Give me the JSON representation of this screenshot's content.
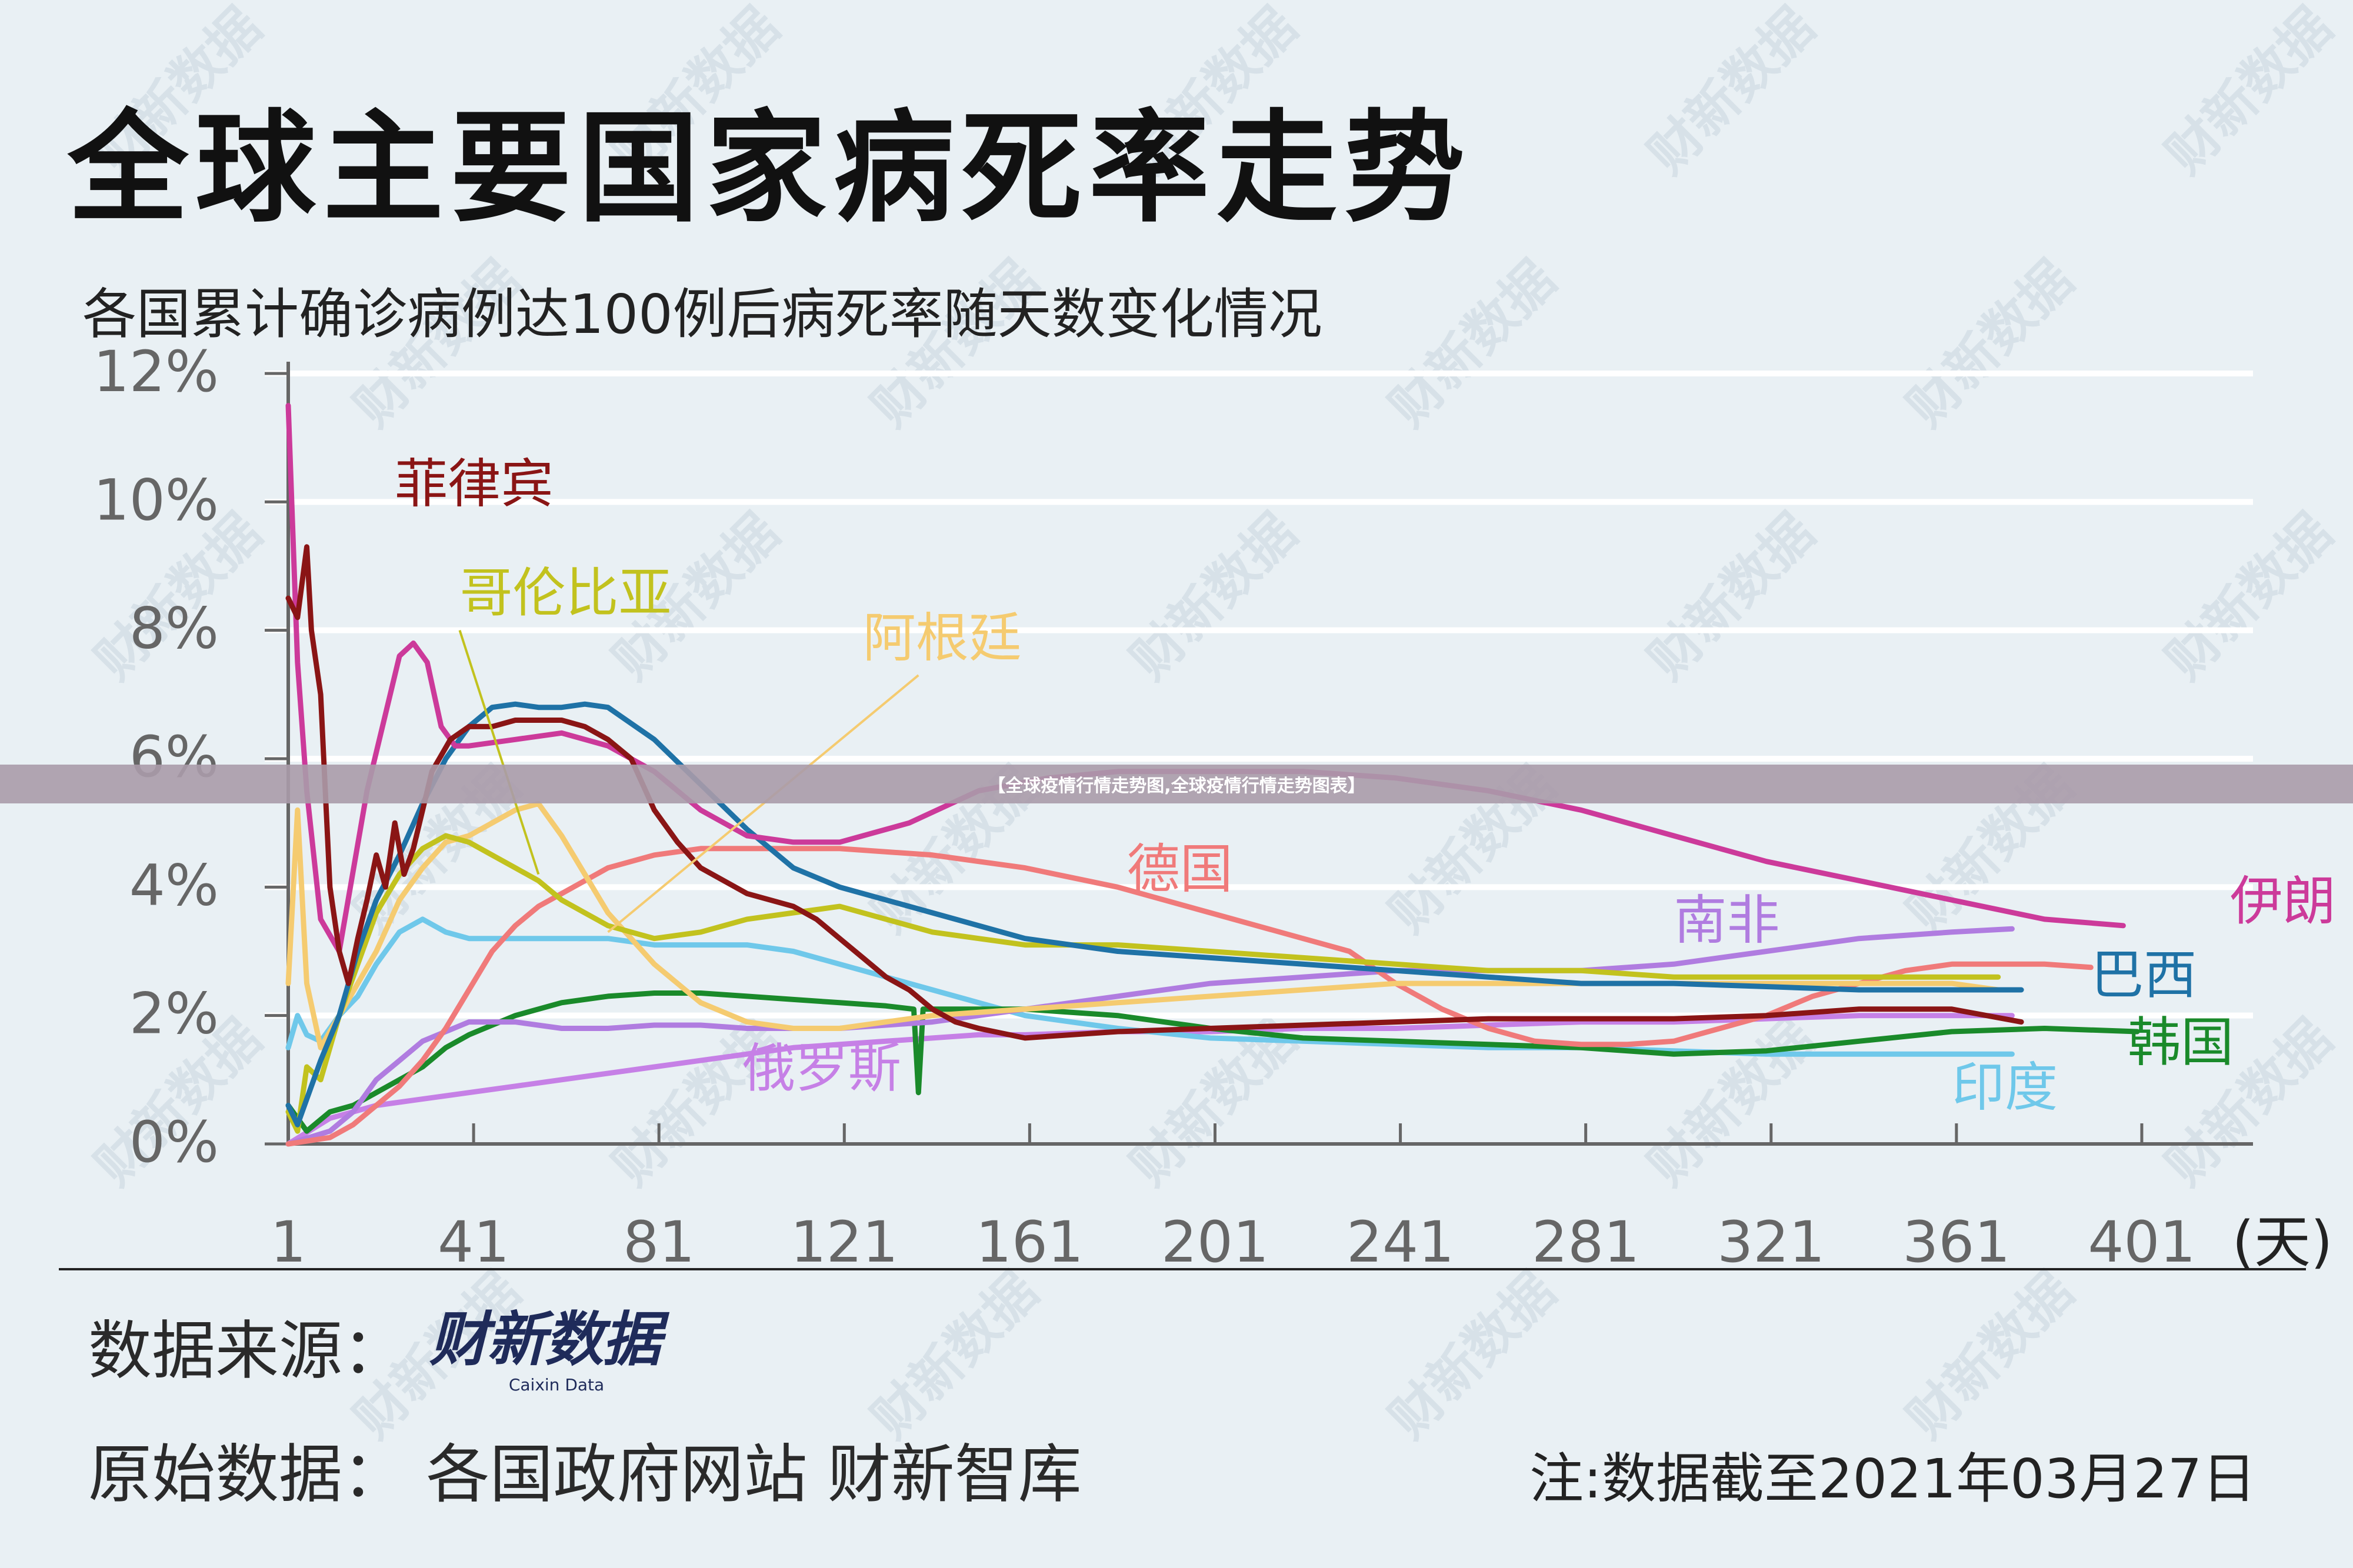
{
  "page": {
    "title": "全球主要国家病死率走势",
    "subtitle": "各国累计确诊病例达100例后病死率随天数变化情况",
    "banner": "【全球疫情行情走势图,全球疫情行情走势图表】",
    "source_label": "数据来源：",
    "logo_cn": "财新数据",
    "logo_en": "Caixin Data",
    "original_data": "原始数据：  各国政府网站  财新智库",
    "note": "注:数据截至2021年03月27日",
    "watermark": "财新数据"
  },
  "chart_data": {
    "type": "line",
    "title": "全球主要国家病死率走势",
    "subtitle": "各国累计确诊病例达100例后病死率随天数变化情况",
    "xlabel": "(天)",
    "xlim": [
      1,
      425
    ],
    "ylim": [
      0,
      12
    ],
    "xticks": [
      1,
      41,
      81,
      121,
      161,
      201,
      241,
      281,
      321,
      361,
      401
    ],
    "yticks": [
      0,
      2,
      4,
      6,
      8,
      10,
      12
    ],
    "ytick_labels": [
      "0%",
      "2%",
      "4%",
      "6%",
      "8%",
      "10%",
      "12%"
    ],
    "grid": true,
    "series": [
      {
        "name": "伊朗",
        "color": "#cc3a9a",
        "label_pos": [
          420,
          3.5
        ],
        "x": [
          1,
          3,
          5,
          8,
          12,
          18,
          25,
          28,
          31,
          34,
          37,
          40,
          50,
          60,
          70,
          80,
          90,
          100,
          110,
          120,
          135,
          150,
          165,
          180,
          200,
          220,
          240,
          260,
          280,
          300,
          320,
          340,
          360,
          380,
          397
        ],
        "y": [
          11.5,
          7.5,
          5.5,
          3.5,
          3.0,
          5.5,
          7.6,
          7.8,
          7.5,
          6.5,
          6.2,
          6.2,
          6.3,
          6.4,
          6.2,
          5.8,
          5.2,
          4.8,
          4.7,
          4.7,
          5.0,
          5.5,
          5.7,
          5.8,
          5.8,
          5.8,
          5.7,
          5.5,
          5.2,
          4.8,
          4.4,
          4.1,
          3.8,
          3.5,
          3.4
        ]
      },
      {
        "name": "菲律宾",
        "color": "#8a1515",
        "label_pos": [
          24,
          10.0
        ],
        "x": [
          1,
          3,
          5,
          6,
          8,
          9,
          10,
          12,
          14,
          16,
          18,
          20,
          22,
          24,
          26,
          28,
          32,
          36,
          40,
          45,
          50,
          55,
          60,
          65,
          70,
          75,
          80,
          85,
          90,
          100,
          110,
          115,
          120,
          125,
          130,
          135,
          140,
          145,
          150,
          160,
          170,
          180,
          200,
          220,
          240,
          260,
          280,
          300,
          320,
          340,
          360,
          375
        ],
        "y": [
          8.5,
          8.2,
          9.3,
          8.0,
          7.0,
          5.5,
          4.0,
          3.0,
          2.5,
          3.2,
          3.8,
          4.5,
          4.0,
          5.0,
          4.2,
          4.6,
          5.8,
          6.3,
          6.5,
          6.5,
          6.6,
          6.6,
          6.6,
          6.5,
          6.3,
          6.0,
          5.2,
          4.7,
          4.3,
          3.9,
          3.7,
          3.5,
          3.2,
          2.9,
          2.6,
          2.4,
          2.1,
          1.9,
          1.8,
          1.65,
          1.7,
          1.75,
          1.8,
          1.85,
          1.9,
          1.95,
          1.95,
          1.95,
          2.0,
          2.1,
          2.1,
          1.9
        ]
      },
      {
        "name": "哥伦比亚",
        "color": "#c2c21e",
        "label_pos": [
          38,
          8.3
        ],
        "x": [
          1,
          3,
          5,
          8,
          12,
          16,
          20,
          25,
          30,
          35,
          40,
          45,
          50,
          55,
          60,
          65,
          70,
          75,
          80,
          90,
          100,
          110,
          120,
          130,
          140,
          150,
          160,
          180,
          200,
          220,
          240,
          260,
          280,
          300,
          320,
          340,
          360,
          370
        ],
        "y": [
          0.5,
          0.2,
          1.2,
          1.0,
          2.0,
          2.8,
          3.6,
          4.2,
          4.6,
          4.8,
          4.7,
          4.5,
          4.3,
          4.1,
          3.8,
          3.6,
          3.4,
          3.3,
          3.2,
          3.3,
          3.5,
          3.6,
          3.7,
          3.5,
          3.3,
          3.2,
          3.1,
          3.1,
          3.0,
          2.9,
          2.8,
          2.7,
          2.7,
          2.6,
          2.6,
          2.6,
          2.6,
          2.6
        ]
      },
      {
        "name": "阿根廷",
        "color": "#f5cb70",
        "label_pos": [
          125,
          7.6
        ],
        "x": [
          1,
          3,
          5,
          8,
          12,
          16,
          20,
          25,
          30,
          35,
          40,
          45,
          50,
          55,
          60,
          65,
          70,
          80,
          90,
          100,
          110,
          120,
          130,
          140,
          150,
          160,
          180,
          200,
          220,
          240,
          260,
          280,
          300,
          320,
          340,
          360,
          370
        ],
        "y": [
          2.5,
          5.2,
          2.5,
          1.5,
          2.0,
          2.5,
          3.0,
          3.8,
          4.3,
          4.7,
          4.8,
          5.0,
          5.2,
          5.3,
          4.8,
          4.2,
          3.6,
          2.8,
          2.2,
          1.9,
          1.8,
          1.8,
          1.9,
          2.0,
          2.05,
          2.1,
          2.2,
          2.3,
          2.4,
          2.5,
          2.5,
          2.5,
          2.5,
          2.5,
          2.5,
          2.5,
          2.4
        ]
      },
      {
        "name": "德国",
        "color": "#f07a7a",
        "label_pos": [
          182,
          4.0
        ],
        "x": [
          1,
          10,
          15,
          20,
          25,
          30,
          35,
          40,
          45,
          50,
          55,
          60,
          65,
          70,
          75,
          80,
          90,
          100,
          110,
          120,
          140,
          160,
          180,
          200,
          220,
          230,
          240,
          250,
          260,
          270,
          280,
          290,
          300,
          310,
          320,
          330,
          340,
          350,
          360,
          370,
          380,
          390
        ],
        "y": [
          0.0,
          0.1,
          0.3,
          0.6,
          0.9,
          1.3,
          1.8,
          2.4,
          3.0,
          3.4,
          3.7,
          3.9,
          4.1,
          4.3,
          4.4,
          4.5,
          4.6,
          4.6,
          4.6,
          4.6,
          4.5,
          4.3,
          4.0,
          3.6,
          3.2,
          3.0,
          2.5,
          2.1,
          1.8,
          1.6,
          1.55,
          1.55,
          1.6,
          1.8,
          2.0,
          2.3,
          2.5,
          2.7,
          2.8,
          2.8,
          2.8,
          2.75
        ]
      },
      {
        "name": "南非",
        "color": "#b07ce0",
        "label_pos": [
          300,
          3.2
        ],
        "x": [
          1,
          10,
          15,
          20,
          25,
          30,
          40,
          50,
          60,
          70,
          80,
          90,
          100,
          110,
          120,
          130,
          140,
          150,
          160,
          180,
          200,
          220,
          240,
          260,
          280,
          300,
          320,
          340,
          360,
          373
        ],
        "y": [
          0.0,
          0.2,
          0.5,
          1.0,
          1.3,
          1.6,
          1.9,
          1.9,
          1.8,
          1.8,
          1.85,
          1.85,
          1.8,
          1.8,
          1.8,
          1.85,
          1.9,
          2.0,
          2.1,
          2.3,
          2.5,
          2.6,
          2.7,
          2.7,
          2.7,
          2.8,
          3.0,
          3.2,
          3.3,
          3.35
        ]
      },
      {
        "name": "巴西",
        "color": "#1f72a6",
        "label_pos": [
          390,
          2.35
        ],
        "x": [
          1,
          3,
          5,
          8,
          12,
          16,
          20,
          25,
          30,
          35,
          40,
          45,
          50,
          55,
          60,
          65,
          70,
          80,
          90,
          100,
          110,
          120,
          140,
          160,
          180,
          200,
          220,
          240,
          260,
          280,
          300,
          320,
          340,
          360,
          375
        ],
        "y": [
          0.6,
          0.3,
          0.7,
          1.3,
          2.0,
          3.0,
          3.8,
          4.5,
          5.3,
          6.0,
          6.5,
          6.8,
          6.85,
          6.8,
          6.8,
          6.85,
          6.8,
          6.3,
          5.6,
          4.9,
          4.3,
          4.0,
          3.6,
          3.2,
          3.0,
          2.9,
          2.8,
          2.7,
          2.6,
          2.5,
          2.5,
          2.45,
          2.4,
          2.4,
          2.4
        ]
      },
      {
        "name": "印度",
        "color": "#6fc8ea",
        "label_pos": [
          360,
          0.6
        ],
        "x": [
          1,
          3,
          5,
          8,
          12,
          16,
          20,
          25,
          30,
          35,
          40,
          50,
          60,
          70,
          80,
          90,
          100,
          110,
          120,
          140,
          160,
          180,
          200,
          220,
          240,
          260,
          280,
          300,
          320,
          340,
          360,
          373
        ],
        "y": [
          1.5,
          2.0,
          1.7,
          1.6,
          2.0,
          2.3,
          2.8,
          3.3,
          3.5,
          3.3,
          3.2,
          3.2,
          3.2,
          3.2,
          3.1,
          3.1,
          3.1,
          3.0,
          2.8,
          2.4,
          2.0,
          1.8,
          1.65,
          1.6,
          1.55,
          1.5,
          1.5,
          1.45,
          1.4,
          1.4,
          1.4,
          1.4
        ]
      },
      {
        "name": "韩国",
        "color": "#1a8a2a",
        "label_pos": [
          398,
          1.3
        ],
        "x": [
          1,
          5,
          10,
          15,
          20,
          25,
          30,
          35,
          40,
          50,
          60,
          70,
          80,
          90,
          100,
          110,
          120,
          130,
          136,
          137,
          138,
          140,
          150,
          160,
          180,
          200,
          220,
          240,
          260,
          280,
          300,
          320,
          340,
          360,
          380,
          400
        ],
        "y": [
          0.6,
          0.2,
          0.5,
          0.6,
          0.8,
          1.0,
          1.2,
          1.5,
          1.7,
          2.0,
          2.2,
          2.3,
          2.35,
          2.35,
          2.3,
          2.25,
          2.2,
          2.15,
          2.1,
          0.8,
          2.1,
          2.1,
          2.1,
          2.1,
          2.0,
          1.8,
          1.65,
          1.6,
          1.55,
          1.5,
          1.4,
          1.45,
          1.6,
          1.75,
          1.8,
          1.75
        ]
      },
      {
        "name": "俄罗斯",
        "color": "#c680e6",
        "label_pos": [
          99,
          0.9
        ],
        "x": [
          1,
          10,
          20,
          30,
          40,
          50,
          60,
          70,
          80,
          90,
          100,
          110,
          120,
          130,
          140,
          150,
          160,
          180,
          200,
          220,
          240,
          260,
          280,
          300,
          320,
          340,
          360,
          373
        ],
        "y": [
          0.0,
          0.4,
          0.6,
          0.7,
          0.8,
          0.9,
          1.0,
          1.1,
          1.2,
          1.3,
          1.4,
          1.5,
          1.55,
          1.6,
          1.65,
          1.7,
          1.7,
          1.75,
          1.75,
          1.8,
          1.8,
          1.85,
          1.9,
          1.9,
          1.95,
          2.0,
          2.0,
          2.0
        ]
      }
    ],
    "annotations": [
      {
        "target": "哥伦比亚",
        "from": [
          38,
          8.0
        ],
        "to": [
          55,
          4.2
        ]
      },
      {
        "target": "阿根廷",
        "from": [
          137,
          7.3
        ],
        "to": [
          70,
          3.3
        ]
      }
    ]
  }
}
